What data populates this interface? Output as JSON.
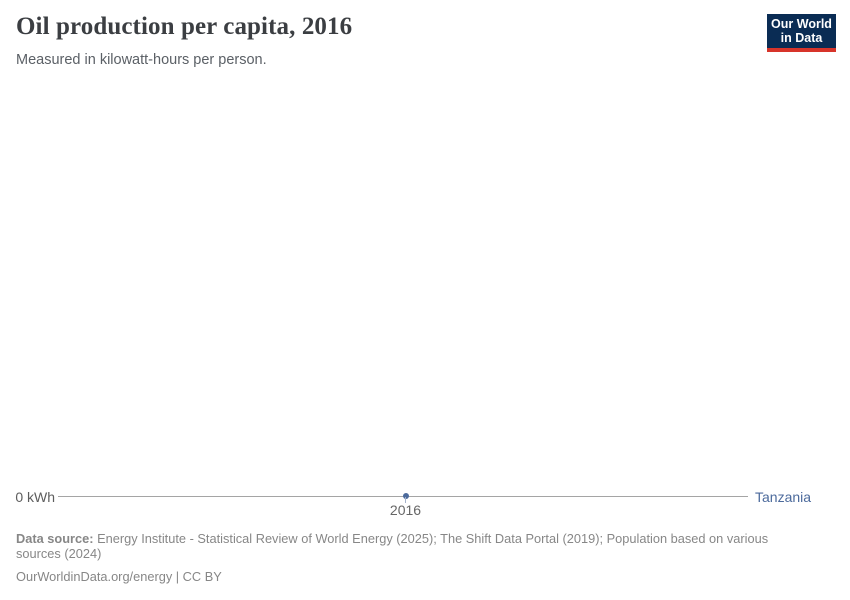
{
  "header": {
    "title": "Oil production per capita, 2016",
    "subtitle": "Measured in kilowatt-hours per person.",
    "logo": {
      "line1": "Our World",
      "line2": "in Data"
    }
  },
  "chart": {
    "y_axis_label": "0 kWh",
    "x_tick_label": "2016",
    "entity_label": "Tanzania"
  },
  "chart_data": {
    "type": "line",
    "title": "Oil production per capita, 2016",
    "subtitle": "Measured in kilowatt-hours per person.",
    "unit": "kilowatt-hours per person",
    "x": [
      2016
    ],
    "series": [
      {
        "name": "Tanzania",
        "values": [
          0
        ]
      }
    ],
    "x_ticks": [
      "2016"
    ],
    "y_ticks": [
      "0 kWh"
    ],
    "ylim": [
      0,
      0
    ],
    "grid": false,
    "legend_position": "right-end-of-line",
    "series_colors": {
      "Tanzania": "#4c6a9c"
    }
  },
  "footer": {
    "source_label": "Data source:",
    "source_text": "Energy Institute - Statistical Review of World Energy (2025); The Shift Data Portal (2019); Population based on various sources (2024)",
    "note": "OurWorldinData.org/energy | CC BY"
  },
  "colors": {
    "accent_blue": "#4c6a9c",
    "axis_line": "#a5a5a5",
    "logo_background": "#0a2c54",
    "logo_red": "#d7342a",
    "footer_gray": "#878787"
  }
}
